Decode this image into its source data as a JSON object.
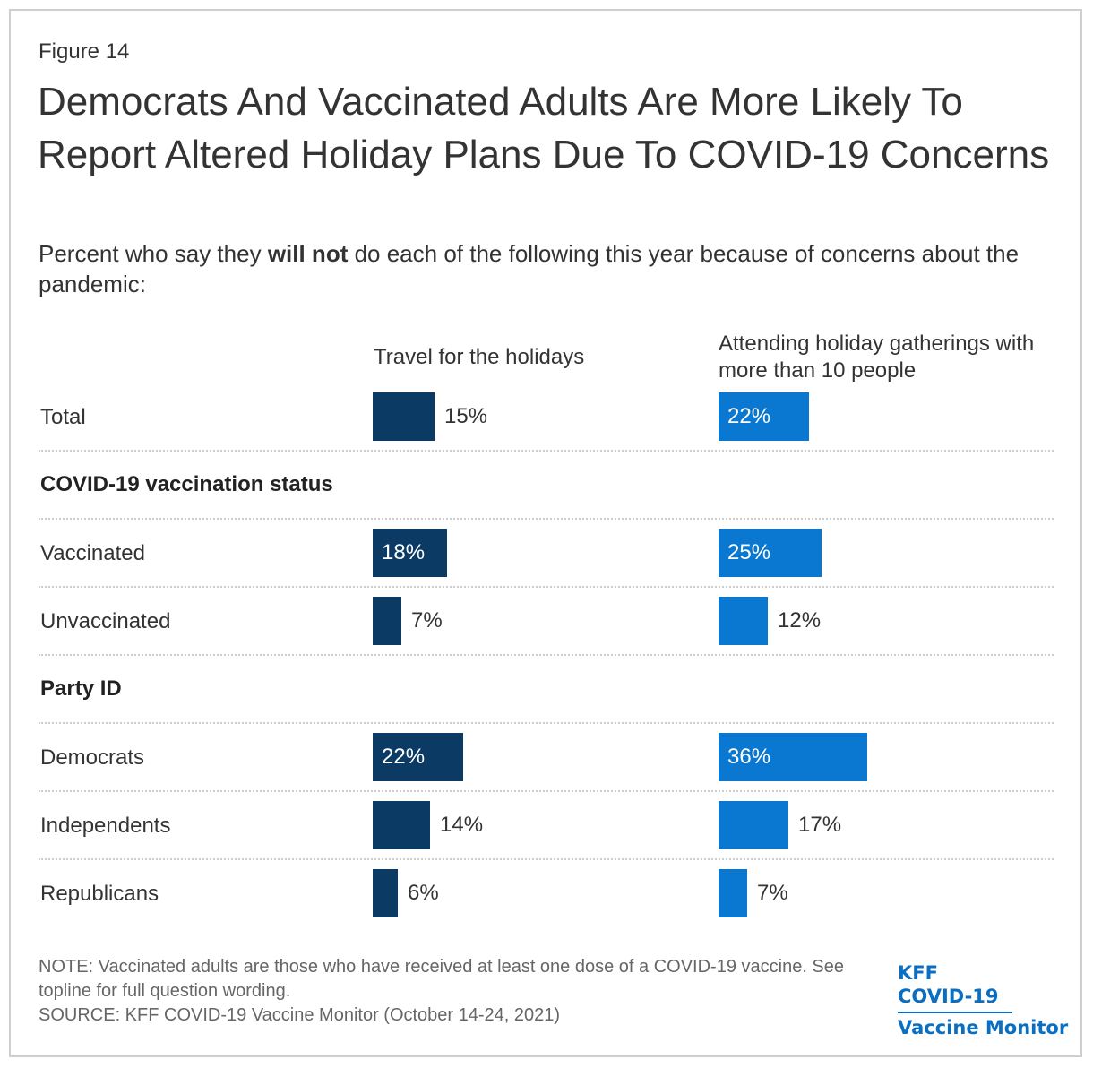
{
  "figure_label": "Figure 14",
  "title": "Democrats And Vaccinated Adults Are More Likely To Report Altered Holiday Plans Due To COVID-19 Concerns",
  "subtitle": {
    "pre": "Percent who say they ",
    "bold": "will not",
    "post": " do each of the following this year because of concerns about the pandemic:"
  },
  "colors": {
    "travel": "#0b3a64",
    "gatherings": "#0a77d0"
  },
  "chart_data": {
    "type": "bar",
    "orientation": "horizontal",
    "title": "Democrats And Vaccinated Adults Are More Likely To Report Altered Holiday Plans Due To COVID-19 Concerns",
    "unit": "%",
    "series": [
      {
        "name": "Travel for the holidays",
        "color": "#0b3a64",
        "values": [
          15,
          18,
          7,
          22,
          14,
          6
        ]
      },
      {
        "name": "Attending holiday gatherings with more than 10 people",
        "color": "#0a77d0",
        "values": [
          22,
          25,
          12,
          36,
          17,
          7
        ]
      }
    ],
    "rows": [
      {
        "type": "row",
        "label": "Total",
        "index": 0
      },
      {
        "type": "group",
        "label": "COVID-19 vaccination status"
      },
      {
        "type": "row",
        "label": "Vaccinated",
        "index": 1
      },
      {
        "type": "row",
        "label": "Unvaccinated",
        "index": 2
      },
      {
        "type": "group",
        "label": "Party ID"
      },
      {
        "type": "row",
        "label": "Democrats",
        "index": 3
      },
      {
        "type": "row",
        "label": "Independents",
        "index": 4
      },
      {
        "type": "row",
        "label": "Republicans",
        "index": 5
      }
    ]
  },
  "note": "NOTE: Vaccinated adults are those who have received at least one dose of a COVID-19 vaccine. See topline for full question wording.",
  "source": "SOURCE: KFF COVID-19 Vaccine Monitor (October 14-24, 2021)",
  "brand": {
    "line1": "KFF COVID-19",
    "line2": "Vaccine Monitor"
  }
}
